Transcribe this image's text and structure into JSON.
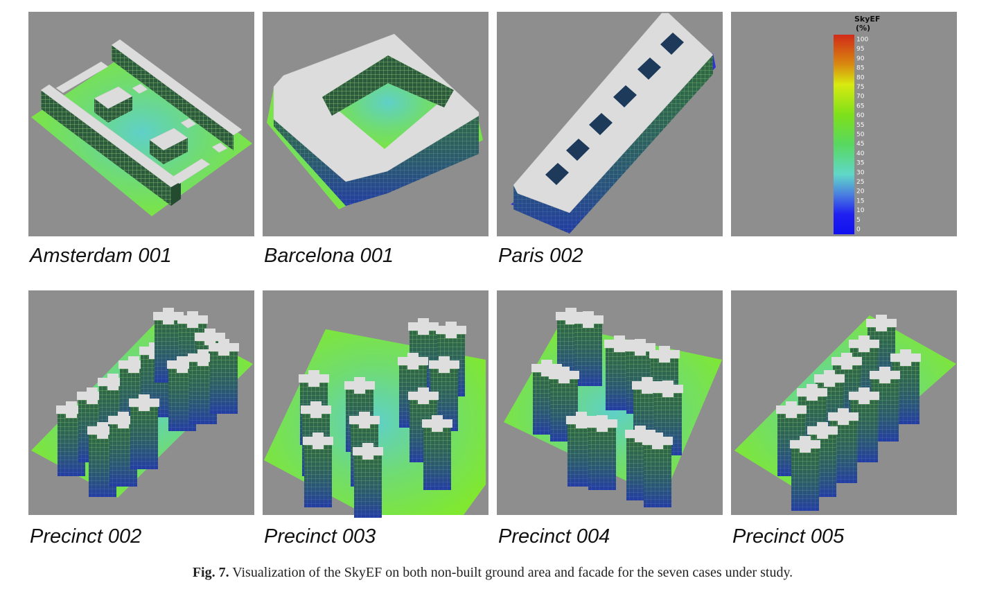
{
  "panels": [
    "Amsterdam 001",
    "Barcelona 001",
    "Paris 002",
    "Precinct 002",
    "Precinct 003",
    "Precinct 004",
    "Precinct 005"
  ],
  "legend": {
    "title": "SkyEF",
    "unit": "(%)",
    "ticks": [
      100,
      95,
      90,
      85,
      80,
      75,
      70,
      65,
      60,
      55,
      50,
      45,
      40,
      35,
      30,
      25,
      20,
      15,
      10,
      5,
      0
    ]
  },
  "caption": {
    "label": "Fig. 7.",
    "text": " Visualization of the SkyEF on both non-built ground area and facade for the seven cases under study."
  }
}
